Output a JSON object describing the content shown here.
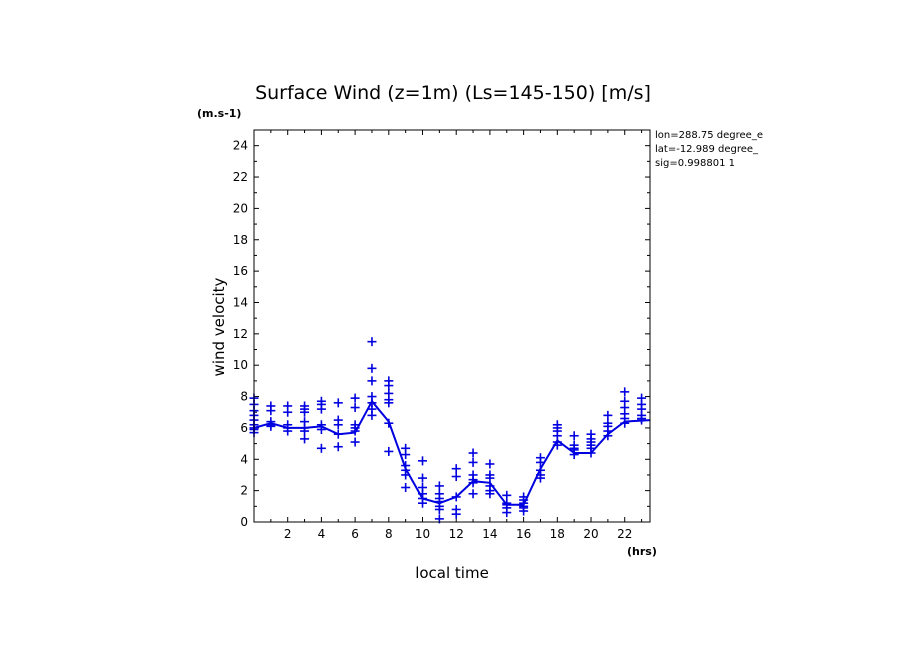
{
  "chart_data": {
    "type": "scatter",
    "title": "Surface Wind (z=1m) (Ls=145-150) [m/s]",
    "ylabel": "wind velocity",
    "yunits": "(m.s-1)",
    "xlabel": "local time",
    "xunits": "(hrs)",
    "xlim": [
      0,
      23.5
    ],
    "ylim": [
      0,
      25
    ],
    "xticks": [
      2,
      4,
      6,
      8,
      10,
      12,
      14,
      16,
      18,
      20,
      22
    ],
    "yticks": [
      0,
      2,
      4,
      6,
      8,
      10,
      12,
      14,
      16,
      18,
      20,
      22,
      24
    ],
    "info": [
      "lon=288.75 degree_e",
      "lat=-12.989 degree_",
      "sig=0.998801 1"
    ],
    "color": "#0000e0",
    "series": [
      {
        "type": "line",
        "x": [
          0.0,
          1.0,
          2.0,
          3.0,
          4.0,
          5.0,
          6.0,
          7.0,
          8.0,
          9.0,
          10.0,
          11.0,
          12.0,
          13.0,
          14.0,
          15.0,
          16.0,
          17.0,
          18.0,
          19.0,
          20.0,
          21.0,
          22.0,
          23.5
        ],
        "y": [
          6.0,
          6.3,
          6.0,
          6.0,
          6.1,
          5.6,
          5.7,
          7.7,
          6.4,
          3.4,
          1.5,
          1.2,
          1.6,
          2.6,
          2.5,
          1.1,
          1.1,
          3.4,
          5.2,
          4.4,
          4.4,
          5.6,
          6.4,
          6.5
        ]
      },
      {
        "type": "scatter",
        "x": [
          0,
          0,
          0,
          0,
          0,
          0,
          0,
          0,
          0,
          1,
          1,
          1,
          1,
          1,
          2,
          2,
          2,
          2,
          2,
          3,
          3,
          3,
          3,
          3,
          3,
          3,
          4,
          4,
          4,
          4,
          4,
          4,
          5,
          5,
          5,
          5,
          5,
          6,
          6,
          6,
          6,
          6,
          6,
          7,
          7,
          7,
          7,
          7,
          7,
          7,
          8,
          8,
          8,
          8,
          8,
          8,
          8,
          9,
          9,
          9,
          9,
          9,
          9,
          10,
          10,
          10,
          10,
          10,
          10,
          11,
          11,
          11,
          11,
          11,
          11,
          11,
          12,
          12,
          12,
          12,
          12,
          13,
          13,
          13,
          13,
          13,
          13,
          14,
          14,
          14,
          14,
          14,
          14,
          15,
          15,
          15,
          15,
          15,
          16,
          16,
          16,
          16,
          16,
          16,
          17,
          17,
          17,
          17,
          17,
          18,
          18,
          18,
          18,
          18,
          18,
          19,
          19,
          19,
          19,
          19,
          20,
          20,
          20,
          20,
          20,
          20,
          21,
          21,
          21,
          21,
          21,
          22,
          22,
          22,
          22,
          22,
          22,
          23,
          23,
          23,
          23,
          23,
          23
        ],
        "y": [
          7.9,
          7.5,
          7.1,
          6.8,
          6.5,
          6.2,
          6.0,
          5.9,
          5.7,
          7.4,
          7.1,
          6.4,
          6.2,
          6.1,
          7.4,
          7.0,
          6.2,
          6.0,
          5.8,
          7.4,
          7.2,
          7.0,
          6.4,
          6.0,
          5.8,
          5.3,
          7.7,
          7.5,
          7.2,
          6.2,
          5.9,
          4.7,
          7.6,
          6.5,
          6.2,
          5.6,
          4.8,
          7.9,
          7.3,
          6.2,
          6.0,
          5.8,
          5.1,
          11.5,
          9.8,
          9.0,
          8.0,
          7.6,
          7.2,
          6.8,
          9.0,
          8.7,
          8.2,
          7.8,
          7.6,
          6.3,
          4.5,
          4.7,
          4.3,
          3.6,
          3.3,
          3.0,
          2.2,
          3.9,
          2.8,
          2.2,
          1.8,
          1.5,
          1.2,
          2.3,
          1.8,
          1.5,
          1.3,
          1.0,
          0.8,
          0.2,
          3.4,
          2.9,
          1.6,
          0.8,
          0.5,
          4.4,
          3.8,
          3.0,
          2.7,
          2.5,
          1.8,
          3.7,
          3.0,
          2.8,
          2.3,
          2.0,
          1.8,
          1.7,
          1.2,
          1.1,
          0.9,
          0.6,
          1.6,
          1.4,
          1.2,
          1.0,
          0.9,
          0.7,
          4.1,
          3.8,
          3.3,
          3.0,
          2.8,
          6.2,
          6.0,
          5.8,
          5.5,
          5.1,
          4.9,
          5.5,
          4.9,
          4.7,
          4.6,
          4.3,
          5.6,
          5.3,
          5.1,
          4.9,
          4.7,
          4.4,
          6.8,
          6.3,
          6.1,
          5.8,
          5.5,
          8.3,
          7.7,
          7.3,
          6.9,
          6.6,
          6.3,
          7.9,
          7.5,
          7.2,
          6.8,
          6.6,
          6.5
        ]
      }
    ]
  }
}
